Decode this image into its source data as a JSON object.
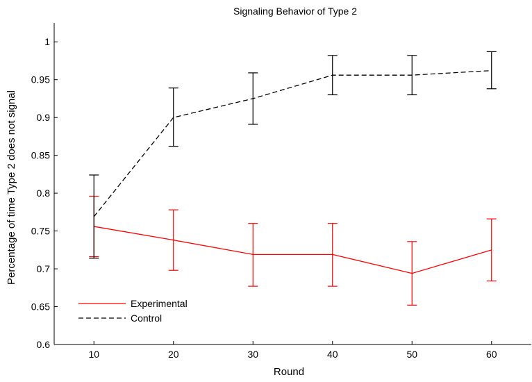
{
  "chart_data": {
    "type": "line",
    "title": "Signaling Behavior of Type 2",
    "xlabel": "Round",
    "ylabel": "Percentage of time Type 2 does not signal",
    "x": [
      10,
      20,
      30,
      40,
      50,
      60
    ],
    "xlim": [
      5,
      65
    ],
    "ylim": [
      0.6,
      1.025
    ],
    "xticks": [
      10,
      20,
      30,
      40,
      50,
      60
    ],
    "yticks": [
      0.6,
      0.65,
      0.7,
      0.75,
      0.8,
      0.85,
      0.9,
      0.95,
      1
    ],
    "ytick_labels": [
      "0.6",
      "0.65",
      "0.7",
      "0.75",
      "0.8",
      "0.85",
      "0.9",
      "0.95",
      "1"
    ],
    "grid": false,
    "legend_position": "bottom-left",
    "series": [
      {
        "name": "Experimental",
        "color": "#ff0000",
        "style": "solid",
        "values": [
          0.756,
          0.738,
          0.719,
          0.719,
          0.694,
          0.725
        ],
        "error_low": [
          0.716,
          0.698,
          0.677,
          0.677,
          0.652,
          0.684
        ],
        "error_high": [
          0.796,
          0.778,
          0.76,
          0.76,
          0.736,
          0.766
        ]
      },
      {
        "name": "Control",
        "color": "#000000",
        "style": "dashed",
        "values": [
          0.769,
          0.9,
          0.925,
          0.956,
          0.956,
          0.962
        ],
        "error_low": [
          0.714,
          0.862,
          0.891,
          0.93,
          0.93,
          0.938
        ],
        "error_high": [
          0.824,
          0.939,
          0.959,
          0.982,
          0.982,
          0.987
        ]
      }
    ]
  }
}
